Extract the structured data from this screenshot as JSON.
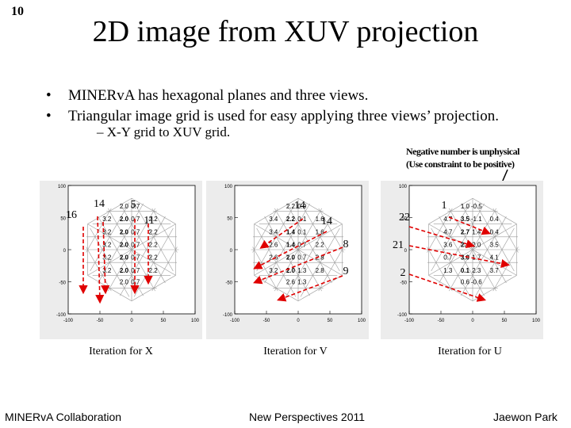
{
  "slide_number": "10",
  "title": "2D image from XUV projection",
  "bullets": [
    "MINERvA has hexagonal planes and three views.",
    "Triangular image grid is used for easy applying three views’ projection."
  ],
  "sub_bullet": "X-Y grid to XUV grid.",
  "note": {
    "line1": "Negative number is unphysical",
    "line2": "(Use constraint to be positive)"
  },
  "axis_ticks": {
    "y": [
      "100",
      "50",
      "0",
      "-50",
      "-100"
    ],
    "x": [
      "-100",
      "-50",
      "0",
      "50",
      "100"
    ]
  },
  "panels": [
    {
      "caption": "Iteration for X",
      "annotations": [
        "16",
        "14",
        "5",
        "11"
      ],
      "cells": [
        [
          "2.0",
          "0.7"
        ],
        [
          "3.2",
          "2.0",
          "0.7",
          "2.2"
        ],
        [
          "3.2",
          "2.0",
          "0.7",
          "2.2"
        ],
        [
          "3.2",
          "2.0",
          "0.7",
          "2.2"
        ],
        [
          "3.2",
          "2.0",
          "0.7",
          "2.2"
        ],
        [
          "3.2",
          "2.0",
          "0.7",
          "2.2"
        ],
        [
          "2.0",
          "0.7"
        ]
      ]
    },
    {
      "caption": "Iteration for V",
      "annotations": [
        "14",
        "14",
        "8",
        "9"
      ],
      "cells": [
        [
          "2.2",
          "0.9"
        ],
        [
          "3.4",
          "2.2",
          "0.1",
          "1.6"
        ],
        [
          "3.4",
          "1.4",
          "0.1",
          "1.6"
        ],
        [
          "2.6",
          "1.4",
          "0.7",
          "2.2"
        ],
        [
          "2.6",
          "2.0",
          "0.7",
          "2.8"
        ],
        [
          "3.2",
          "2.0",
          "1.3",
          "2.8"
        ],
        [
          "2.6",
          "1.3"
        ]
      ]
    },
    {
      "caption": "Iteration for U",
      "annotations": [
        "1",
        "22",
        "21",
        "2"
      ],
      "cells": [
        [
          "1.0",
          "-0.5"
        ],
        [
          "4.7",
          "3.5",
          "-1.1",
          "0.4"
        ],
        [
          "4.7",
          "2.7",
          "1.4",
          "0.4"
        ],
        [
          "3.6",
          "2.4",
          "2.0",
          "3.5"
        ],
        [
          "0.7",
          "3.0",
          "1.7",
          "4.1"
        ],
        [
          "1.3",
          "0.1",
          "2.3",
          "3.7"
        ],
        [
          "0.6",
          "-0.6"
        ]
      ]
    }
  ],
  "footer": {
    "left": "MINERvA Collaboration",
    "center": "New Perspectives 2011",
    "right": "Jaewon Park"
  }
}
